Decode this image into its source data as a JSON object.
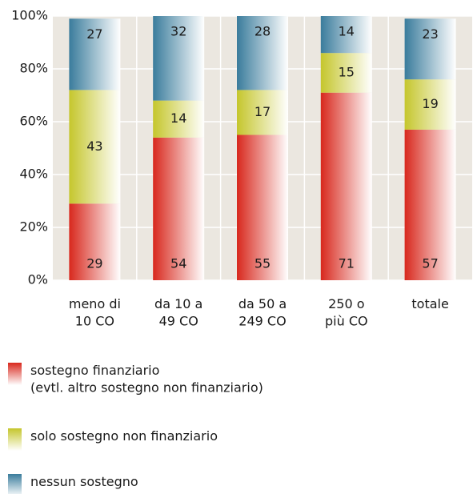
{
  "chart_data": {
    "type": "stacked_bar",
    "categories": [
      [
        "meno di",
        "10 CO"
      ],
      [
        "da 10 a",
        "49 CO"
      ],
      [
        "da 50 a",
        "249 CO"
      ],
      [
        "250 o",
        "più CO"
      ],
      [
        "totale"
      ]
    ],
    "series": [
      {
        "name": [
          "sostegno finanziario",
          "(evtl. altro sostegno non finanziario)"
        ],
        "color": "#d8281d",
        "values": [
          29,
          54,
          55,
          71,
          57
        ]
      },
      {
        "name": [
          "solo sostegno non finanziario"
        ],
        "color": "#c5c62c",
        "values": [
          43,
          14,
          17,
          15,
          19
        ]
      },
      {
        "name": [
          "nessun sostegno"
        ],
        "color": "#3a7c9c",
        "values": [
          27,
          32,
          28,
          14,
          23
        ]
      }
    ],
    "ylim": [
      0,
      100
    ],
    "yticks": [
      {
        "value": 0,
        "label": "0%"
      },
      {
        "value": 20,
        "label": "20%"
      },
      {
        "value": 40,
        "label": "40%"
      },
      {
        "value": 60,
        "label": "60%"
      },
      {
        "value": 80,
        "label": "80%"
      },
      {
        "value": 100,
        "label": "100%"
      }
    ],
    "grid": true
  }
}
